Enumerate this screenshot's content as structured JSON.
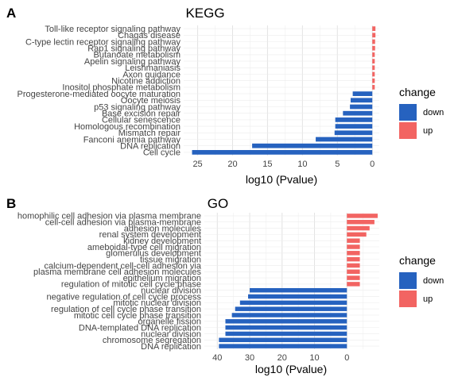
{
  "chart_data": [
    {
      "type": "bar",
      "orientation": "horizontal",
      "panel_letter": "A",
      "title": "KEGG",
      "xlabel": "log10 (Pvalue)",
      "x_reversed": true,
      "xlim": [
        27,
        -1
      ],
      "xticks": [
        25,
        20,
        15,
        10,
        5,
        0
      ],
      "grid": true,
      "legend": {
        "title": "change",
        "position": "right",
        "entries": [
          {
            "label": "down",
            "color": "#2662BF"
          },
          {
            "label": "up",
            "color": "#F26462"
          }
        ]
      },
      "categories": [
        "Toll-like receptor signaling pathway",
        "Chagas disease",
        "C-type lectin receptor signaling pathway",
        "Rap1 signaling pathway",
        "Butanoate metabolism",
        "Apelin signaling pathway",
        "Leishmaniasis",
        "Axon guidance",
        "Nicotine addiction",
        "Inositol phosphate metabolism",
        "Progesterone-mediated oocyte maturation",
        "Oocyte meiosis",
        "p53 signaling pathway",
        "Base excision repair",
        "Cellular senescence",
        "Homologous recombination",
        "Mismatch repair",
        "Fanconi anemia pathway",
        "DNA replication",
        "Cell cycle"
      ],
      "values": [
        -0.45,
        -0.45,
        -0.4,
        -0.4,
        -0.35,
        -0.35,
        -0.35,
        -0.35,
        -0.35,
        -0.35,
        2.8,
        3.1,
        3.2,
        4.2,
        5.3,
        5.3,
        5.4,
        8.1,
        17.2,
        25.8
      ],
      "change": [
        "up",
        "up",
        "up",
        "up",
        "up",
        "up",
        "up",
        "up",
        "up",
        "up",
        "down",
        "down",
        "down",
        "down",
        "down",
        "down",
        "down",
        "down",
        "down",
        "down"
      ]
    },
    {
      "type": "bar",
      "orientation": "horizontal",
      "panel_letter": "B",
      "title": "GO",
      "xlabel": "log10 (Pvalue)",
      "x_reversed": true,
      "xlim": [
        44,
        -10
      ],
      "xticks": [
        40,
        30,
        20,
        10,
        0
      ],
      "grid": true,
      "legend": {
        "title": "change",
        "position": "right",
        "entries": [
          {
            "label": "down",
            "color": "#2662BF"
          },
          {
            "label": "up",
            "color": "#F26462"
          }
        ]
      },
      "categories": [
        "homophilic cell adhesion via plasma membrane",
        "cell-cell adhesion via plasma-membrane",
        "adhesion molecules",
        "renal system development",
        "kidney development",
        "ameboidal-type cell migration",
        "glomerulus development",
        "tissue migration",
        "calcium-dependent cell-cell adhesion via",
        "plasma membrane cell adhesion molecules",
        "epithelium migration",
        "regulation of mitotic cell cycle phase",
        "nuclear division",
        "negative regulation of cell cycle process",
        "mitotic nuclear division",
        "regulation of cell cycle phase transition",
        "mitotic cell cycle phase transition",
        "organelle fission",
        "DNA-templated DNA replication",
        "nuclear division",
        "chromosome segregation",
        "DNA replication"
      ],
      "values": [
        -9.5,
        -8.5,
        -7,
        -6,
        -4,
        -4,
        -4,
        -4,
        -4,
        -4,
        -4,
        -4,
        30,
        30.5,
        33,
        34.5,
        35.5,
        37.5,
        37.5,
        37.5,
        39.5,
        39.5
      ],
      "change": [
        "up",
        "up",
        "up",
        "up",
        "up",
        "up",
        "up",
        "up",
        "up",
        "up",
        "up",
        "up",
        "down",
        "down",
        "down",
        "down",
        "down",
        "down",
        "down",
        "down",
        "down",
        "down"
      ]
    }
  ]
}
